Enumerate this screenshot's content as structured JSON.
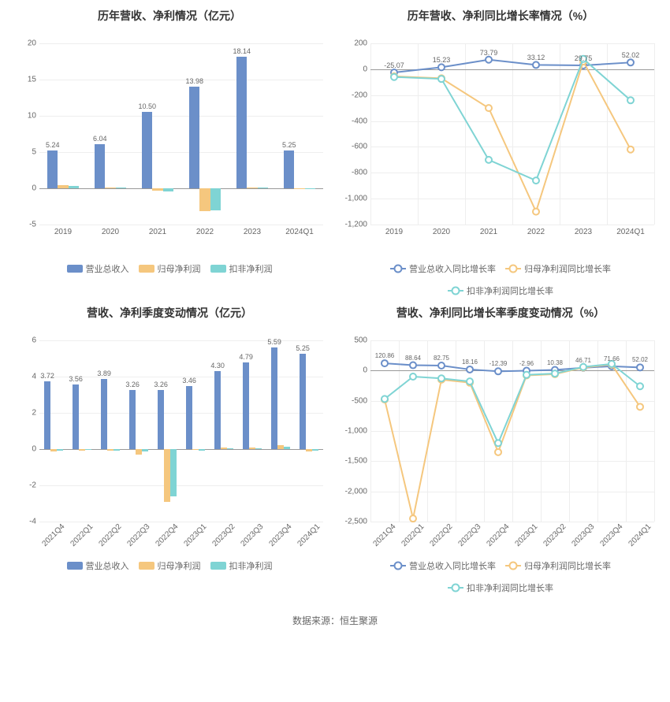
{
  "footer": "数据来源：恒生聚源",
  "colors": {
    "blue": "#6b8fc9",
    "orange": "#f5c77e",
    "cyan": "#7fd4d4",
    "grid": "#eeeeee",
    "axis": "#999999",
    "text": "#666666"
  },
  "chart1": {
    "title": "历年营收、净利情况（亿元）",
    "type": "bar",
    "categories": [
      "2019",
      "2020",
      "2021",
      "2022",
      "2023",
      "2024Q1"
    ],
    "ylim": [
      -5,
      20
    ],
    "yticks": [
      -5,
      0,
      5,
      10,
      15,
      20
    ],
    "series": [
      {
        "name": "营业总收入",
        "color": "#6b8fc9",
        "values": [
          5.24,
          6.04,
          10.5,
          13.98,
          18.14,
          5.25
        ],
        "labels": [
          "5.24",
          "6.04",
          "10.50",
          "13.98",
          "18.14",
          "5.25"
        ]
      },
      {
        "name": "归母净利润",
        "color": "#f5c77e",
        "values": [
          0.45,
          0.15,
          -0.35,
          -3.2,
          0.1,
          -0.15
        ]
      },
      {
        "name": "扣非净利润",
        "color": "#7fd4d4",
        "values": [
          0.35,
          0.1,
          -0.4,
          -3.0,
          0.15,
          -0.1
        ]
      }
    ],
    "bar_width": 0.22
  },
  "chart2": {
    "title": "历年营收、净利同比增长率情况（%）",
    "type": "line",
    "categories": [
      "2019",
      "2020",
      "2021",
      "2022",
      "2023",
      "2024Q1"
    ],
    "ylim": [
      -1200,
      200
    ],
    "yticks": [
      -1200,
      -1000,
      -800,
      -600,
      -400,
      -200,
      0,
      200
    ],
    "series": [
      {
        "name": "营业总收入同比增长率",
        "color": "#6b8fc9",
        "values": [
          -25.07,
          15.23,
          73.79,
          33.12,
          29.75,
          52.02
        ],
        "labels": [
          "-25.07",
          "15.23",
          "73.79",
          "33.12",
          "29.75",
          "52.02"
        ],
        "show_labels": true
      },
      {
        "name": "归母净利润同比增长率",
        "color": "#f5c77e",
        "values": [
          -55,
          -70,
          -300,
          -1100,
          60,
          -620
        ]
      },
      {
        "name": "扣非净利润同比增长率",
        "color": "#7fd4d4",
        "values": [
          -60,
          -75,
          -700,
          -860,
          80,
          -240
        ]
      }
    ]
  },
  "chart3": {
    "title": "营收、净利季度变动情况（亿元）",
    "type": "bar",
    "categories": [
      "2021Q4",
      "2022Q1",
      "2022Q2",
      "2022Q3",
      "2022Q4",
      "2023Q1",
      "2023Q2",
      "2023Q3",
      "2023Q4",
      "2024Q1"
    ],
    "ylim": [
      -4,
      6
    ],
    "yticks": [
      -4,
      -2,
      0,
      2,
      4,
      6
    ],
    "rotate_x": true,
    "series": [
      {
        "name": "营业总收入",
        "color": "#6b8fc9",
        "values": [
          3.72,
          3.56,
          3.89,
          3.26,
          3.26,
          3.46,
          4.3,
          4.79,
          5.59,
          5.25
        ],
        "labels": [
          "3.72",
          "3.56",
          "3.89",
          "3.26",
          "3.26",
          "3.46",
          "4.30",
          "4.79",
          "5.59",
          "5.25"
        ]
      },
      {
        "name": "归母净利润",
        "color": "#f5c77e",
        "values": [
          -0.15,
          -0.1,
          -0.1,
          -0.3,
          -2.9,
          -0.05,
          0.1,
          0.1,
          0.2,
          -0.15
        ]
      },
      {
        "name": "扣非净利润",
        "color": "#7fd4d4",
        "values": [
          -0.1,
          -0.05,
          -0.1,
          -0.15,
          -2.6,
          -0.1,
          0.05,
          0.05,
          0.15,
          -0.1
        ]
      }
    ],
    "bar_width": 0.22
  },
  "chart4": {
    "title": "营收、净利同比增长率季度变动情况（%）",
    "type": "line",
    "categories": [
      "2021Q4",
      "2022Q1",
      "2022Q2",
      "2022Q3",
      "2022Q4",
      "2023Q1",
      "2023Q2",
      "2023Q3",
      "2023Q4",
      "2024Q1"
    ],
    "ylim": [
      -2500,
      500
    ],
    "yticks": [
      -2500,
      -2000,
      -1500,
      -1000,
      -500,
      0,
      500
    ],
    "rotate_x": true,
    "series": [
      {
        "name": "营业总收入同比增长率",
        "color": "#6b8fc9",
        "values": [
          120.86,
          88.64,
          82.75,
          18.16,
          -12.39,
          -2.96,
          10.38,
          46.71,
          71.66,
          52.02
        ],
        "labels": [
          "120.86",
          "88.64",
          "82.75",
          "18.16",
          "-12.39",
          "-2.96",
          "10.38",
          "46.71",
          "71.66",
          "52.02"
        ],
        "show_labels": true,
        "label_compact": true
      },
      {
        "name": "归母净利润同比增长率",
        "color": "#f5c77e",
        "values": [
          -480,
          -2450,
          -150,
          -200,
          -1350,
          -80,
          -60,
          50,
          100,
          -600
        ]
      },
      {
        "name": "扣非净利润同比增长率",
        "color": "#7fd4d4",
        "values": [
          -470,
          -100,
          -130,
          -180,
          -1200,
          -70,
          -50,
          60,
          110,
          -260
        ]
      }
    ]
  }
}
